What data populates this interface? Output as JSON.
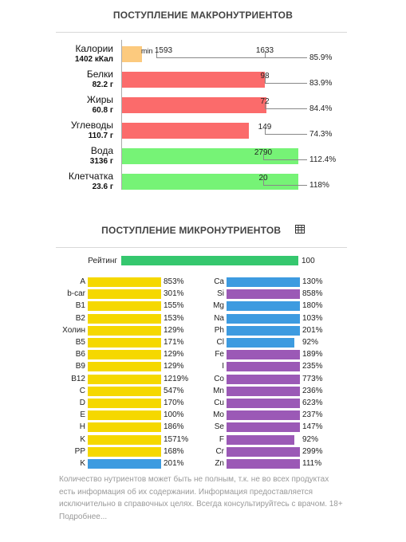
{
  "macro_title": "ПОСТУПЛЕНИЕ МАКРОНУТРИЕНТОВ",
  "min_label": "min",
  "macros": [
    {
      "name": "Калории",
      "amount": "1402 кКал",
      "norm": "1593",
      "norm_max": "1633",
      "percent": "85.9%",
      "fill": 0.859,
      "color": "#fcca7e",
      "bar_frac": 0.11
    },
    {
      "name": "Белки",
      "amount": "82.2 г",
      "norm": "98",
      "percent": "83.9%",
      "fill": 0.839,
      "color": "#fb6b6b",
      "bar_frac": 0.78
    },
    {
      "name": "Жиры",
      "amount": "60.8 г",
      "norm": "72",
      "percent": "84.4%",
      "fill": 0.844,
      "color": "#fb6b6b",
      "bar_frac": 0.785
    },
    {
      "name": "Углеводы",
      "amount": "110.7 г",
      "norm": "149",
      "percent": "74.3%",
      "fill": 0.743,
      "color": "#fb6b6b",
      "bar_frac": 0.69
    },
    {
      "name": "Вода",
      "amount": "3136 г",
      "norm": "2790",
      "percent": "112.4%",
      "fill": 1.124,
      "color": "#76f376",
      "bar_frac": 0.96
    },
    {
      "name": "Клетчатка",
      "amount": "23.6 г",
      "norm": "20",
      "percent": "118%",
      "fill": 1.18,
      "color": "#76f376",
      "bar_frac": 0.96
    }
  ],
  "micro_title": "ПОСТУПЛЕНИЕ МИКРОНУТРИЕНТОВ",
  "rating": {
    "label": "Рейтинг",
    "value": "100",
    "fill": 1.0
  },
  "vitamins": [
    {
      "name": "A",
      "percent": "853%",
      "color": "#f5d800"
    },
    {
      "name": "b-car",
      "percent": "301%",
      "color": "#f5d800"
    },
    {
      "name": "B1",
      "percent": "155%",
      "color": "#f5d800"
    },
    {
      "name": "B2",
      "percent": "153%",
      "color": "#f5d800"
    },
    {
      "name": "Холин",
      "percent": "129%",
      "color": "#f5d800"
    },
    {
      "name": "B5",
      "percent": "171%",
      "color": "#f5d800"
    },
    {
      "name": "B6",
      "percent": "129%",
      "color": "#f5d800"
    },
    {
      "name": "B9",
      "percent": "129%",
      "color": "#f5d800"
    },
    {
      "name": "B12",
      "percent": "1219%",
      "color": "#f5d800"
    },
    {
      "name": "C",
      "percent": "547%",
      "color": "#f5d800"
    },
    {
      "name": "D",
      "percent": "170%",
      "color": "#f5d800"
    },
    {
      "name": "E",
      "percent": "100%",
      "color": "#f5d800"
    },
    {
      "name": "H",
      "percent": "186%",
      "color": "#f5d800"
    },
    {
      "name": "K",
      "percent": "1571%",
      "color": "#f5d800"
    },
    {
      "name": "PP",
      "percent": "168%",
      "color": "#f5d800"
    },
    {
      "name": "K",
      "percent": "201%",
      "color": "#3d9be0"
    }
  ],
  "minerals": [
    {
      "name": "Ca",
      "percent": "130%",
      "color": "#3d9be0",
      "fill": 1.0
    },
    {
      "name": "Si",
      "percent": "858%",
      "color": "#9b59b6",
      "fill": 1.0
    },
    {
      "name": "Mg",
      "percent": "180%",
      "color": "#3d9be0",
      "fill": 1.0
    },
    {
      "name": "Na",
      "percent": "103%",
      "color": "#3d9be0",
      "fill": 1.0
    },
    {
      "name": "Ph",
      "percent": "201%",
      "color": "#3d9be0",
      "fill": 1.0
    },
    {
      "name": "Cl",
      "percent": "92%",
      "color": "#3d9be0",
      "fill": 0.92
    },
    {
      "name": "Fe",
      "percent": "189%",
      "color": "#9b59b6",
      "fill": 1.0
    },
    {
      "name": "I",
      "percent": "235%",
      "color": "#9b59b6",
      "fill": 1.0
    },
    {
      "name": "Co",
      "percent": "773%",
      "color": "#9b59b6",
      "fill": 1.0
    },
    {
      "name": "Mn",
      "percent": "236%",
      "color": "#9b59b6",
      "fill": 1.0
    },
    {
      "name": "Cu",
      "percent": "623%",
      "color": "#9b59b6",
      "fill": 1.0
    },
    {
      "name": "Mo",
      "percent": "237%",
      "color": "#9b59b6",
      "fill": 1.0
    },
    {
      "name": "Se",
      "percent": "147%",
      "color": "#9b59b6",
      "fill": 1.0
    },
    {
      "name": "F",
      "percent": "92%",
      "color": "#9b59b6",
      "fill": 0.92
    },
    {
      "name": "Cr",
      "percent": "299%",
      "color": "#9b59b6",
      "fill": 1.0
    },
    {
      "name": "Zn",
      "percent": "111%",
      "color": "#9b59b6",
      "fill": 1.0
    }
  ],
  "note": "Количество нутриентов может быть не полным, т.к. не во всех продуктах есть информация об их содержании. Информация предоставляется исключительно в справочных целях. Всегда консультируйтесь с врачом. 18+ Подробнее..."
}
